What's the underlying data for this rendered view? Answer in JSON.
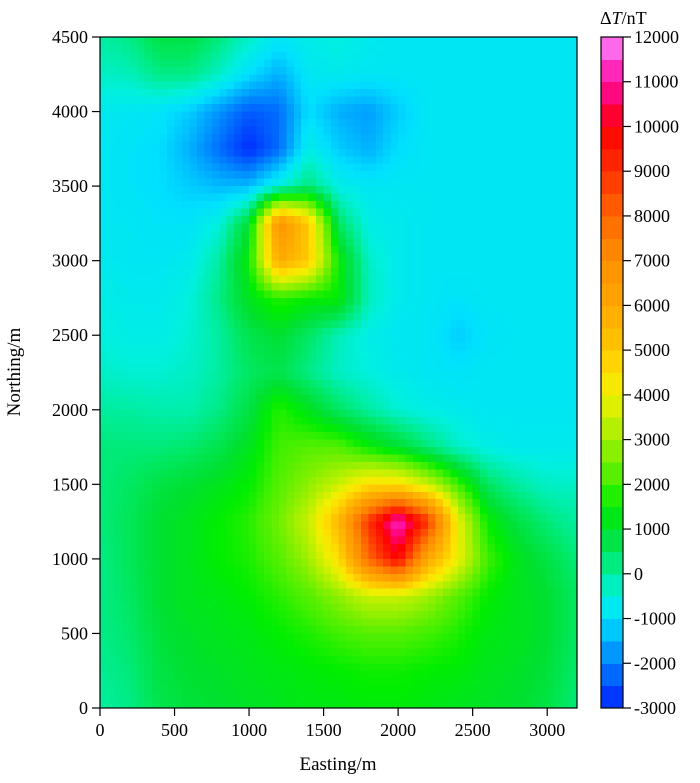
{
  "chart_data": {
    "type": "heatmap",
    "title": "",
    "xlabel": "Easting/m",
    "ylabel": "Northing/m",
    "colorbar_label_delta": "Δ",
    "colorbar_label_var": "T",
    "colorbar_label_unit": "/nT",
    "xlim": [
      0,
      3200
    ],
    "ylim": [
      0,
      4500
    ],
    "xticks": [
      0,
      500,
      1000,
      1500,
      2000,
      2500,
      3000
    ],
    "yticks": [
      0,
      500,
      1000,
      1500,
      2000,
      2500,
      3000,
      3500,
      4000,
      4500
    ],
    "clim": [
      -3000,
      12000
    ],
    "colorbar_ticks": [
      -3000,
      -2000,
      -1000,
      0,
      1000,
      2000,
      3000,
      4000,
      5000,
      6000,
      7000,
      8000,
      9000,
      10000,
      11000,
      12000
    ],
    "colormap": [
      [
        -3000,
        "#0020ff"
      ],
      [
        -2500,
        "#0050ff"
      ],
      [
        -2000,
        "#0080ff"
      ],
      [
        -1500,
        "#00b0ff"
      ],
      [
        -1000,
        "#00e0ff"
      ],
      [
        -500,
        "#00f0e0"
      ],
      [
        0,
        "#00eea0"
      ],
      [
        500,
        "#00e860"
      ],
      [
        1000,
        "#00e030"
      ],
      [
        1500,
        "#00ee00"
      ],
      [
        2000,
        "#40f000"
      ],
      [
        2500,
        "#70f000"
      ],
      [
        3000,
        "#a0f000"
      ],
      [
        3500,
        "#c8f000"
      ],
      [
        4000,
        "#f0f000"
      ],
      [
        4500,
        "#ffe000"
      ],
      [
        5000,
        "#ffc800"
      ],
      [
        6000,
        "#ffa800"
      ],
      [
        7000,
        "#ff9000"
      ],
      [
        8000,
        "#ff6800"
      ],
      [
        9000,
        "#ff3000"
      ],
      [
        10000,
        "#ff0000"
      ],
      [
        10500,
        "#ff0060"
      ],
      [
        11000,
        "#ff10a0"
      ],
      [
        11500,
        "#ff40d0"
      ],
      [
        12000,
        "#ff90ff"
      ]
    ],
    "grid_x": [
      0,
      200,
      400,
      600,
      800,
      1000,
      1200,
      1400,
      1600,
      1800,
      2000,
      2200,
      2400,
      2600,
      2800,
      3000,
      3200
    ],
    "grid_y": [
      4500,
      4250,
      4000,
      3750,
      3500,
      3250,
      3000,
      2750,
      2500,
      2250,
      2000,
      1750,
      1500,
      1250,
      1000,
      750,
      500,
      250,
      0
    ],
    "values": [
      [
        0,
        200,
        800,
        800,
        300,
        -300,
        -800,
        -600,
        -500,
        -700,
        -800,
        -800,
        -800,
        -800,
        -800,
        -800,
        -800
      ],
      [
        -300,
        -200,
        200,
        200,
        -300,
        -1000,
        -1500,
        -800,
        -700,
        -800,
        -800,
        -800,
        -800,
        -800,
        -800,
        -800,
        -800
      ],
      [
        -700,
        -800,
        -900,
        -1200,
        -1800,
        -2400,
        -2200,
        -1000,
        -1500,
        -1700,
        -1200,
        -800,
        -800,
        -800,
        -800,
        -800,
        -800
      ],
      [
        -800,
        -900,
        -1000,
        -1500,
        -2200,
        -2900,
        -2200,
        -600,
        -1200,
        -1500,
        -1000,
        -800,
        -800,
        -800,
        -800,
        -800,
        -800
      ],
      [
        -800,
        -900,
        -1000,
        -1200,
        -1400,
        -1400,
        -500,
        300,
        -600,
        -800,
        -800,
        -800,
        -800,
        -800,
        -800,
        -800,
        -800
      ],
      [
        -800,
        -800,
        -900,
        -900,
        -500,
        1000,
        7000,
        5000,
        500,
        -600,
        -700,
        -800,
        -800,
        -800,
        -800,
        -800,
        -800
      ],
      [
        -700,
        -800,
        -800,
        -700,
        0,
        1500,
        6000,
        5000,
        1500,
        -300,
        -700,
        -800,
        -800,
        -800,
        -800,
        -800,
        -800
      ],
      [
        -600,
        -700,
        -700,
        -500,
        200,
        1200,
        1800,
        1500,
        1500,
        -200,
        -700,
        -800,
        -900,
        -800,
        -800,
        -800,
        -800
      ],
      [
        -500,
        -600,
        -600,
        -400,
        0,
        700,
        1000,
        500,
        -200,
        -600,
        -800,
        -800,
        -1200,
        -900,
        -800,
        -800,
        -800
      ],
      [
        -300,
        -400,
        -400,
        -300,
        0,
        500,
        700,
        200,
        -300,
        -500,
        -700,
        -800,
        -900,
        -800,
        -800,
        -800,
        -800
      ],
      [
        0,
        0,
        -100,
        -100,
        200,
        800,
        1800,
        1200,
        500,
        0,
        -400,
        -600,
        -700,
        -800,
        -800,
        -800,
        -800
      ],
      [
        300,
        300,
        300,
        400,
        700,
        1200,
        2000,
        2200,
        2200,
        1500,
        1000,
        300,
        -300,
        -600,
        -700,
        -700,
        -700
      ],
      [
        300,
        500,
        800,
        1000,
        1200,
        1500,
        2200,
        2800,
        3500,
        4500,
        4500,
        3500,
        2000,
        500,
        0,
        -300,
        -300
      ],
      [
        300,
        600,
        1000,
        1200,
        1500,
        1800,
        2500,
        3500,
        5500,
        9000,
        11500,
        9000,
        4000,
        1500,
        800,
        300,
        0
      ],
      [
        200,
        600,
        1000,
        1200,
        1500,
        1700,
        2200,
        3000,
        4500,
        8000,
        10000,
        6000,
        4000,
        2000,
        1200,
        800,
        300
      ],
      [
        200,
        500,
        1000,
        1200,
        1300,
        1500,
        1800,
        2200,
        2800,
        3500,
        3500,
        3000,
        2200,
        1500,
        1200,
        1000,
        500
      ],
      [
        200,
        400,
        900,
        1100,
        1200,
        1300,
        1500,
        1700,
        2000,
        2200,
        2200,
        2000,
        1700,
        1300,
        1200,
        1000,
        500
      ],
      [
        100,
        300,
        800,
        1000,
        1100,
        1200,
        1300,
        1400,
        1500,
        1600,
        1600,
        1500,
        1400,
        1200,
        1100,
        900,
        400
      ],
      [
        0,
        200,
        700,
        900,
        1000,
        1100,
        1200,
        1300,
        1300,
        1400,
        1400,
        1300,
        1200,
        1100,
        1000,
        800,
        300
      ]
    ],
    "grid": false,
    "legend": "colorbar-right"
  }
}
